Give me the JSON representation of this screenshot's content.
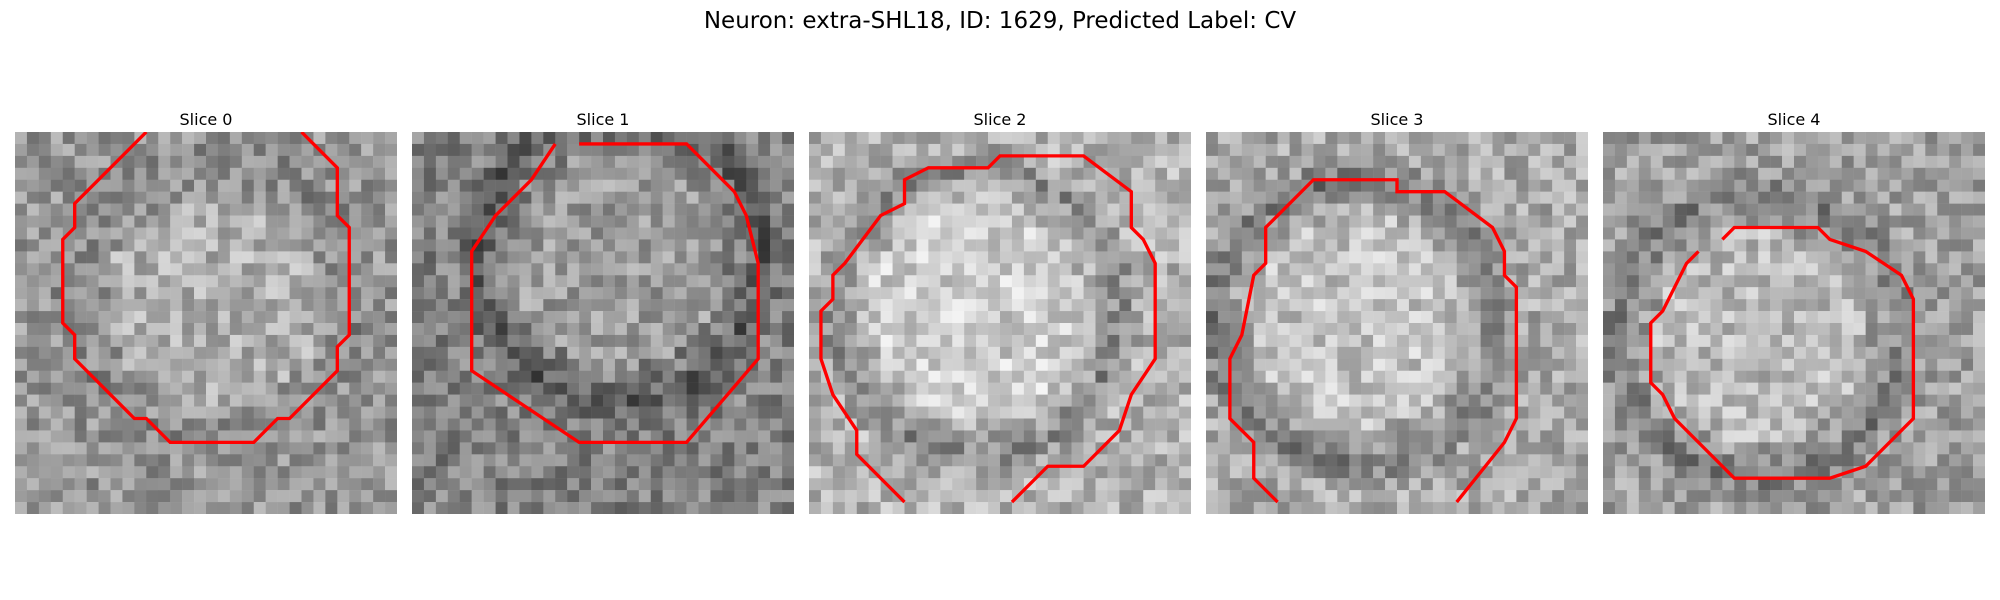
{
  "figure": {
    "title": "Neuron: extra-SHL18, ID: 1629, Predicted Label: CV",
    "contour_color": "#ff0000"
  },
  "slices": [
    {
      "title": "Slice 0",
      "pixel_grid": "grayscale 32x32 patch",
      "base": 150,
      "ring_dark": 15,
      "contour": [
        [
          11,
          0
        ],
        [
          5,
          6
        ],
        [
          5,
          8
        ],
        [
          4,
          9
        ],
        [
          4,
          16
        ],
        [
          5,
          17
        ],
        [
          5,
          19
        ],
        [
          10,
          24
        ],
        [
          11,
          24
        ],
        [
          13,
          26
        ],
        [
          20,
          26
        ],
        [
          22,
          24
        ],
        [
          23,
          24
        ],
        [
          27,
          20
        ],
        [
          27,
          18
        ],
        [
          28,
          17
        ],
        [
          28,
          8
        ],
        [
          27,
          7
        ],
        [
          27,
          3
        ],
        [
          25,
          1
        ],
        [
          24,
          0
        ]
      ]
    },
    {
      "title": "Slice 1",
      "pixel_grid": "grayscale 32x32 patch",
      "base": 130,
      "ring_dark": 45,
      "contour": [
        [
          14,
          1
        ],
        [
          23,
          1
        ],
        [
          27,
          5
        ],
        [
          28,
          7
        ],
        [
          29,
          11
        ],
        [
          29,
          19
        ],
        [
          23,
          26
        ],
        [
          14,
          26
        ],
        [
          5,
          20
        ],
        [
          5,
          10
        ],
        [
          7,
          7
        ],
        [
          10,
          4
        ],
        [
          12,
          1
        ]
      ]
    },
    {
      "title": "Slice 2",
      "pixel_grid": "grayscale 32x32 patch",
      "base": 180,
      "ring_dark": 50,
      "contour": [
        [
          8,
          31
        ],
        [
          4,
          27
        ],
        [
          4,
          25
        ],
        [
          2,
          22
        ],
        [
          1,
          19
        ],
        [
          1,
          15
        ],
        [
          2,
          14
        ],
        [
          2,
          12
        ],
        [
          3,
          11
        ],
        [
          6,
          7
        ],
        [
          8,
          6
        ],
        [
          8,
          4
        ],
        [
          10,
          3
        ],
        [
          15,
          3
        ],
        [
          16,
          2
        ],
        [
          23,
          2
        ],
        [
          27,
          5
        ],
        [
          27,
          8
        ],
        [
          28,
          9
        ],
        [
          29,
          11
        ],
        [
          29,
          19
        ],
        [
          27,
          22
        ],
        [
          26,
          25
        ],
        [
          23,
          28
        ],
        [
          20,
          28
        ],
        [
          17,
          31
        ]
      ]
    },
    {
      "title": "Slice 3",
      "pixel_grid": "grayscale 32x32 patch",
      "base": 170,
      "ring_dark": 55,
      "contour": [
        [
          6,
          31
        ],
        [
          4,
          29
        ],
        [
          4,
          26
        ],
        [
          3,
          25
        ],
        [
          2,
          24
        ],
        [
          2,
          19
        ],
        [
          3,
          17
        ],
        [
          4,
          12
        ],
        [
          5,
          11
        ],
        [
          5,
          8
        ],
        [
          6,
          7
        ],
        [
          9,
          4
        ],
        [
          16,
          4
        ],
        [
          16,
          5
        ],
        [
          20,
          5
        ],
        [
          24,
          8
        ],
        [
          25,
          10
        ],
        [
          25,
          12
        ],
        [
          26,
          13
        ],
        [
          26,
          24
        ],
        [
          25,
          26
        ],
        [
          21,
          31
        ]
      ]
    },
    {
      "title": "Slice 4",
      "pixel_grid": "grayscale 32x32 patch",
      "base": 160,
      "ring_dark": 40,
      "contour": [
        [
          10,
          9
        ],
        [
          11,
          8
        ],
        [
          18,
          8
        ],
        [
          19,
          9
        ],
        [
          22,
          10
        ],
        [
          25,
          12
        ],
        [
          26,
          14
        ],
        [
          26,
          24
        ],
        [
          22,
          28
        ],
        [
          19,
          29
        ],
        [
          11,
          29
        ],
        [
          10,
          28
        ],
        [
          6,
          24
        ],
        [
          5,
          22
        ],
        [
          4,
          21
        ],
        [
          4,
          16
        ],
        [
          5,
          15
        ],
        [
          6,
          13
        ],
        [
          7,
          11
        ],
        [
          8,
          10
        ]
      ]
    }
  ]
}
